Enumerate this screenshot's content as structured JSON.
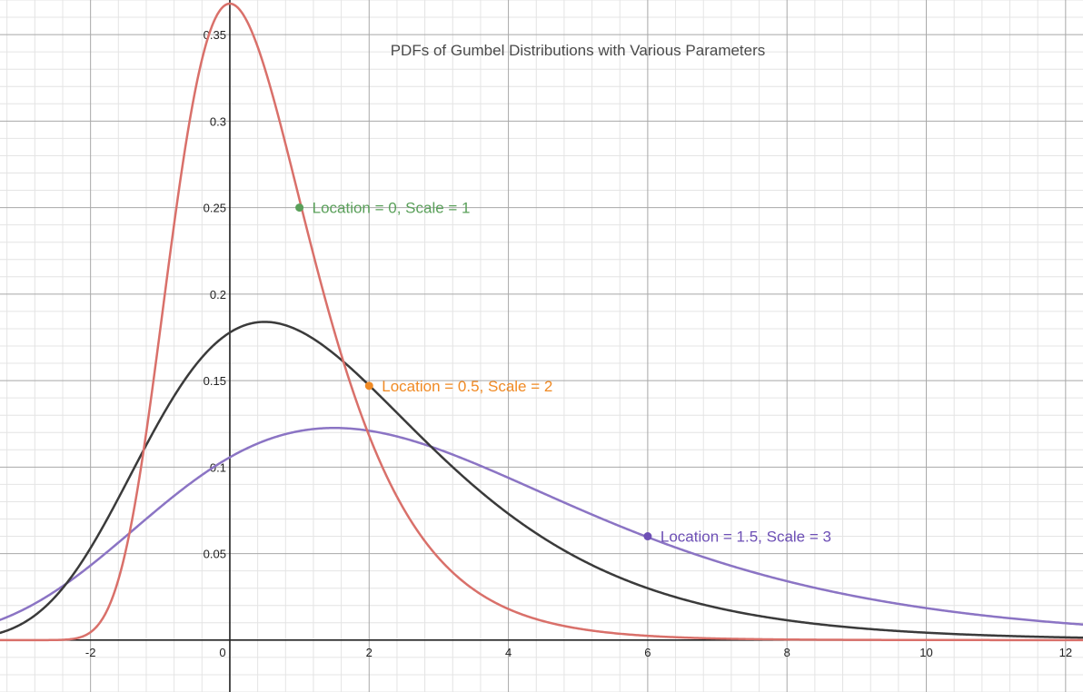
{
  "chart_data": {
    "type": "line",
    "title": "PDFs of Gumbel Distributions with Various Parameters",
    "xlabel": "",
    "ylabel": "",
    "xlim": [
      -3.3,
      12.25
    ],
    "ylim": [
      -0.03,
      0.37
    ],
    "grid": true,
    "origin_label": "0",
    "x_ticks": [
      {
        "value": -2,
        "label": "-2"
      },
      {
        "value": 2,
        "label": "2"
      },
      {
        "value": 4,
        "label": "4"
      },
      {
        "value": 6,
        "label": "6"
      },
      {
        "value": 8,
        "label": "8"
      },
      {
        "value": 10,
        "label": "10"
      },
      {
        "value": 12,
        "label": "12"
      }
    ],
    "y_ticks": [
      {
        "value": 0.05,
        "label": "0.05"
      },
      {
        "value": 0.1,
        "label": "0.1"
      },
      {
        "value": 0.15,
        "label": "0.15"
      },
      {
        "value": 0.2,
        "label": "0.2"
      },
      {
        "value": 0.25,
        "label": "0.25"
      },
      {
        "value": 0.3,
        "label": "0.3"
      },
      {
        "value": 0.35,
        "label": "0.35"
      }
    ],
    "series": [
      {
        "name": "Location = 0, Scale = 1",
        "location": 0,
        "scale": 1,
        "color": "#d9706a"
      },
      {
        "name": "Location = 0.5, Scale = 2",
        "location": 0.5,
        "scale": 2,
        "color": "#3a3a3a"
      },
      {
        "name": "Location = 1.5, Scale = 3",
        "location": 1.5,
        "scale": 3,
        "color": "#8b74c4"
      }
    ],
    "annotations": [
      {
        "text": "Location = 0, Scale = 1",
        "x": 1,
        "y": 0.25,
        "color": "#5aa05a"
      },
      {
        "text": "Location = 0.5, Scale = 2",
        "x": 2,
        "y": 0.147,
        "color": "#f08a24"
      },
      {
        "text": "Location = 1.5, Scale = 3",
        "x": 6,
        "y": 0.06,
        "color": "#6d4fb5"
      }
    ]
  }
}
